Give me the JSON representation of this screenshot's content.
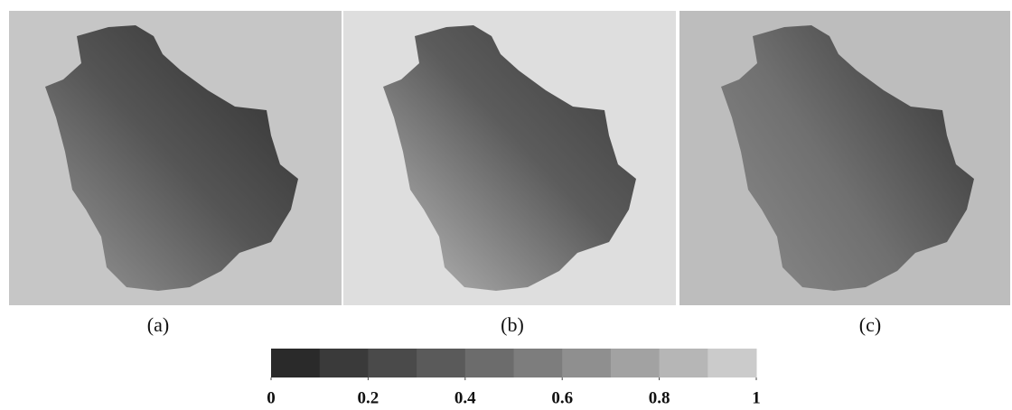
{
  "panels": [
    {
      "label": "(a)"
    },
    {
      "label": "(b)"
    },
    {
      "label": "(c)"
    }
  ],
  "colorbar": {
    "lim": [
      0,
      1
    ],
    "ticks": [
      0,
      0.2,
      0.4,
      0.6,
      0.8,
      1
    ],
    "colors": [
      "#2a2a2a",
      "#3a3a3a",
      "#4a4a4a",
      "#5a5a5a",
      "#6c6c6c",
      "#7d7d7d",
      "#8f8f8f",
      "#a2a2a2",
      "#b6b6b6",
      "#cbcbcb"
    ]
  }
}
